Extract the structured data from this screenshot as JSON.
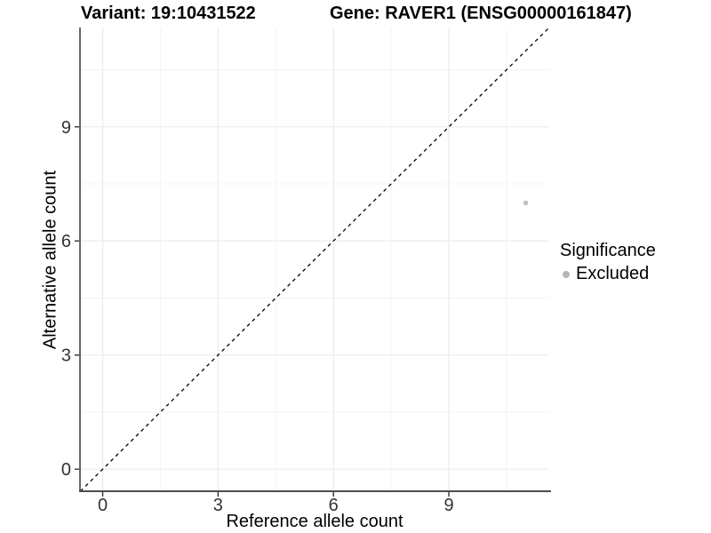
{
  "chart_data": {
    "type": "scatter",
    "title_left": "Variant: 19:10431522",
    "title_right": "Gene: RAVER1 (ENSG00000161847)",
    "xlabel": "Reference allele count",
    "ylabel": "Alternative allele count",
    "xlim": [
      -0.59,
      11.61
    ],
    "ylim": [
      -0.58,
      11.61
    ],
    "x_major_ticks": [
      0,
      3,
      6,
      9
    ],
    "y_major_ticks": [
      0,
      3,
      6,
      9
    ],
    "x_minor_ticks": [
      1.5,
      4.5,
      7.5,
      10.5
    ],
    "y_minor_ticks": [
      1.5,
      4.5,
      7.5,
      10.5
    ],
    "grid": true,
    "series": [
      {
        "name": "Excluded",
        "color": "#bebebe",
        "points": [
          {
            "x": 11,
            "y": 7
          }
        ]
      }
    ],
    "reference_line": {
      "type": "identity",
      "slope": 1,
      "intercept": 0,
      "style": "dashed",
      "color": "#000000"
    },
    "legend": {
      "title": "Significance",
      "position": "right",
      "items": [
        {
          "label": "Excluded",
          "color": "#b7b7b7"
        }
      ]
    },
    "colors": {
      "background": "#ffffff",
      "grid_major": "#ebebeb",
      "grid_minor": "#f4f4f4",
      "axis_line": "#4d4d4d",
      "tick_mark": "#333333",
      "tick_label": "#333333"
    }
  }
}
